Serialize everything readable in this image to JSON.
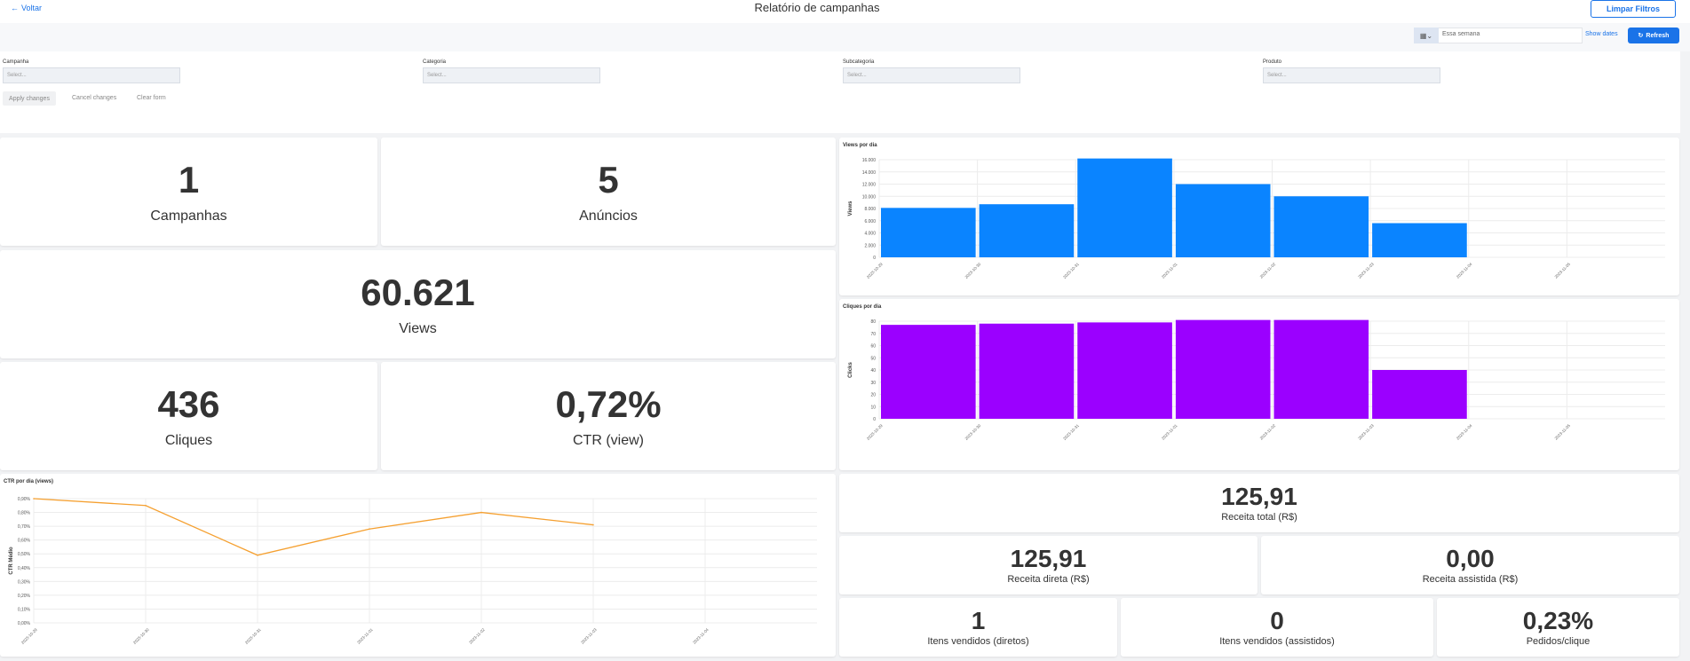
{
  "header": {
    "back_label": "Voltar",
    "title": "Relatório de campanhas",
    "clear_filters": "Limpar Filtros"
  },
  "date_filter": {
    "value": "Essa semana",
    "show_dates": "Show dates",
    "refresh": "Refresh"
  },
  "filters": [
    {
      "label": "Campanha",
      "placeholder": "Select..."
    },
    {
      "label": "Categoria",
      "placeholder": "Select..."
    },
    {
      "label": "Subcategoria",
      "placeholder": "Select..."
    },
    {
      "label": "Produto",
      "placeholder": "Select..."
    }
  ],
  "form_actions": {
    "apply": "Apply changes",
    "cancel": "Cancel changes",
    "clear": "Clear form"
  },
  "kpis": {
    "campanhas": {
      "value": "1",
      "label": "Campanhas"
    },
    "anuncios": {
      "value": "5",
      "label": "Anúncios"
    },
    "views": {
      "value": "60.621",
      "label": "Views"
    },
    "cliques": {
      "value": "436",
      "label": "Cliques"
    },
    "ctr": {
      "value": "0,72%",
      "label": "CTR (view)"
    },
    "receita_total": {
      "value": "125,91",
      "label": "Receita total (R$)"
    },
    "receita_direta": {
      "value": "125,91",
      "label": "Receita direta (R$)"
    },
    "receita_assistida": {
      "value": "0,00",
      "label": "Receita assistida (R$)"
    },
    "itens_diretos": {
      "value": "1",
      "label": "Itens vendidos (diretos)"
    },
    "itens_assistidos": {
      "value": "0",
      "label": "Itens vendidos (assistidos)"
    },
    "pedidos_clique": {
      "value": "0,23%",
      "label": "Pedidos/clique"
    }
  },
  "chart_data": [
    {
      "type": "bar",
      "title": "Views por dia",
      "ylabel": "Views",
      "color": "#0a84ff",
      "categories": [
        "2023-10-29",
        "2023-10-30",
        "2023-10-31",
        "2023-11-01",
        "2023-11-02",
        "2023-11-03",
        "2023-11-04",
        "2023-11-05"
      ],
      "values": [
        8100,
        8700,
        16200,
        12000,
        10000,
        5600,
        null,
        null
      ],
      "ylim": [
        0,
        16000
      ],
      "yticks": [
        "0",
        "2.000",
        "4.000",
        "6.000",
        "8.000",
        "10.000",
        "12.000",
        "14.000",
        "16.000"
      ],
      "grid": true
    },
    {
      "type": "bar",
      "title": "Cliques por dia",
      "ylabel": "Clicks",
      "color": "#9b00ff",
      "categories": [
        "2023-10-29",
        "2023-10-30",
        "2023-10-31",
        "2023-11-01",
        "2023-11-02",
        "2023-11-03",
        "2023-11-04",
        "2023-11-05"
      ],
      "values": [
        77,
        78,
        79,
        81,
        81,
        40,
        null,
        null
      ],
      "ylim": [
        0,
        80
      ],
      "yticks": [
        "0",
        "10",
        "20",
        "30",
        "40",
        "50",
        "60",
        "70",
        "80"
      ],
      "grid": true
    },
    {
      "type": "line",
      "title": "CTR por dia (views)",
      "ylabel": "CTR Médio",
      "color": "#f5a030",
      "categories": [
        "2023-10-29",
        "2023-10-30",
        "2023-10-31",
        "2023-11-01",
        "2023-11-02",
        "2023-11-03",
        "2023-11-04"
      ],
      "values": [
        0.9,
        0.85,
        0.49,
        0.68,
        0.8,
        0.71,
        null
      ],
      "ylim": [
        0,
        0.9
      ],
      "yticks": [
        "0,00%",
        "0,10%",
        "0,20%",
        "0,30%",
        "0,40%",
        "0,50%",
        "0,60%",
        "0,70%",
        "0,80%",
        "0,90%"
      ],
      "grid": true
    }
  ]
}
